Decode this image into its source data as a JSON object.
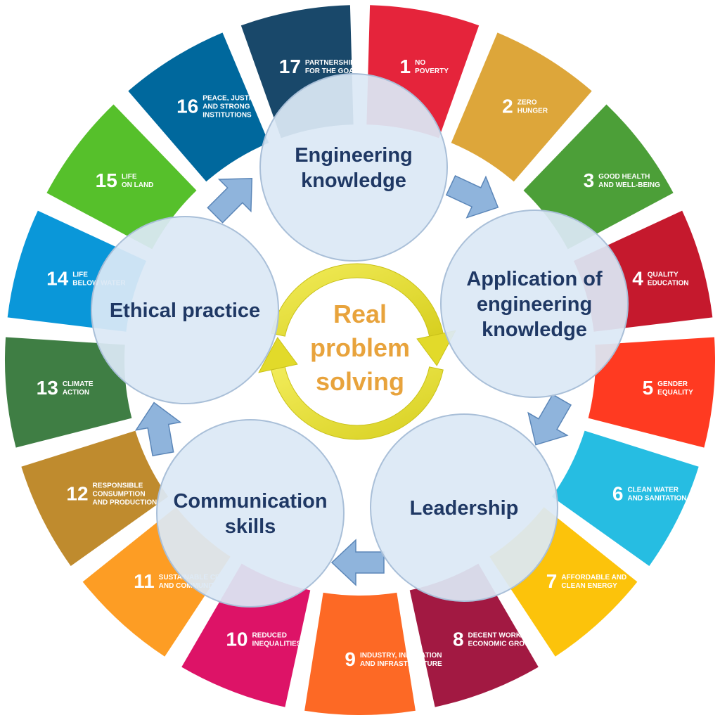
{
  "sdgs": [
    {
      "num": "1",
      "lines": [
        "NO",
        "POVERTY"
      ],
      "color": "#e5243b"
    },
    {
      "num": "2",
      "lines": [
        "ZERO",
        "HUNGER"
      ],
      "color": "#dda63a"
    },
    {
      "num": "3",
      "lines": [
        "GOOD HEALTH",
        "AND WELL-BEING"
      ],
      "color": "#4c9f38"
    },
    {
      "num": "4",
      "lines": [
        "QUALITY",
        "EDUCATION"
      ],
      "color": "#c5192d"
    },
    {
      "num": "5",
      "lines": [
        "GENDER",
        "EQUALITY"
      ],
      "color": "#ff3a21"
    },
    {
      "num": "6",
      "lines": [
        "CLEAN WATER",
        "AND SANITATION"
      ],
      "color": "#26bde2"
    },
    {
      "num": "7",
      "lines": [
        "AFFORDABLE AND",
        "CLEAN ENERGY"
      ],
      "color": "#fcc30b"
    },
    {
      "num": "8",
      "lines": [
        "DECENT WORK AND",
        "ECONOMIC GROWTH"
      ],
      "color": "#a21942"
    },
    {
      "num": "9",
      "lines": [
        "INDUSTRY, INNOVATION",
        "AND INFRASTRUCTURE"
      ],
      "color": "#fd6925"
    },
    {
      "num": "10",
      "lines": [
        "REDUCED",
        "INEQUALITIES"
      ],
      "color": "#dd1367"
    },
    {
      "num": "11",
      "lines": [
        "SUSTAINABLE CITIES",
        "AND COMMUNITIES"
      ],
      "color": "#fd9d24"
    },
    {
      "num": "12",
      "lines": [
        "RESPONSIBLE",
        "CONSUMPTION",
        "AND PRODUCTION"
      ],
      "color": "#bf8b2e"
    },
    {
      "num": "13",
      "lines": [
        "CLIMATE",
        "ACTION"
      ],
      "color": "#3f7e44"
    },
    {
      "num": "14",
      "lines": [
        "LIFE",
        "BELOW WATER"
      ],
      "color": "#0a97d9"
    },
    {
      "num": "15",
      "lines": [
        "LIFE",
        "ON LAND"
      ],
      "color": "#56c02b"
    },
    {
      "num": "16",
      "lines": [
        "PEACE, JUSTICE",
        "AND STRONG",
        "INSTITUTIONS"
      ],
      "color": "#00689d"
    },
    {
      "num": "17",
      "lines": [
        "PARTNERSHIPS",
        "FOR THE GOALS"
      ],
      "color": "#19486a"
    }
  ],
  "nodes": [
    {
      "id": "engineering-knowledge",
      "lines": [
        "Engineering",
        "knowledge"
      ]
    },
    {
      "id": "application",
      "lines": [
        "Application of",
        "engineering",
        "knowledge"
      ]
    },
    {
      "id": "leadership",
      "lines": [
        "Leadership"
      ]
    },
    {
      "id": "communication",
      "lines": [
        "Communication",
        "skills"
      ]
    },
    {
      "id": "ethical-practice",
      "lines": [
        "Ethical practice"
      ]
    }
  ],
  "center": {
    "lines": [
      "Real",
      "problem",
      "solving"
    ]
  },
  "colors": {
    "node_fill": "#dce8f5",
    "node_stroke": "#a9bfd8",
    "node_text": "#1f3864",
    "arrow_fill": "#8fb4dc",
    "arrow_stroke": "#5b86b8",
    "center_text": "#e8a33c",
    "cycle_arrow": "#e6e040"
  }
}
